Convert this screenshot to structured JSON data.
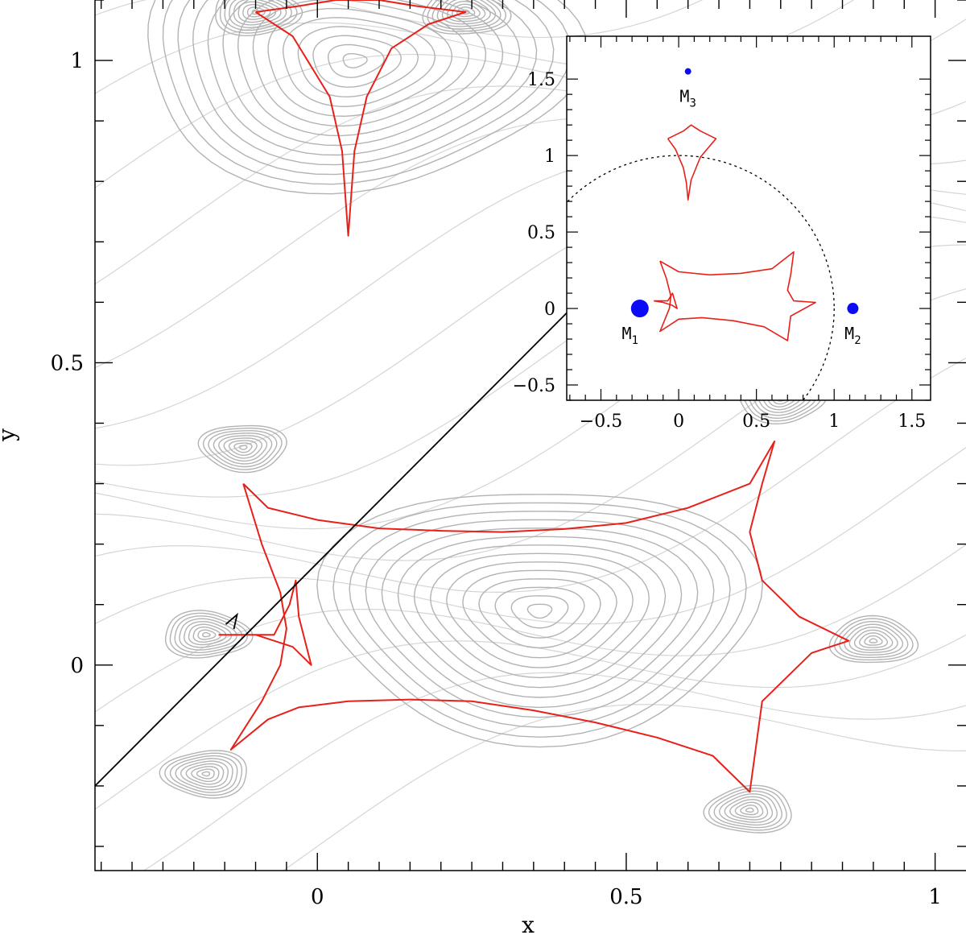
{
  "chart_data": [
    {
      "type": "line",
      "panel": "main",
      "xlabel": "x",
      "ylabel": "y",
      "xlim": [
        -0.36,
        1.05
      ],
      "ylim": [
        -0.34,
        1.1
      ],
      "xticks": [
        0,
        0.5,
        1
      ],
      "xtick_labels": [
        "0",
        "0.5",
        "1"
      ],
      "yticks": [
        0,
        0.5,
        1
      ],
      "ytick_labels": [
        "0",
        "0.5",
        "1"
      ],
      "grid": false,
      "contour_color": "#b3b3b3",
      "caustic_color": "#e8201a",
      "trajectory_color": "#000000",
      "contour_centers": [
        {
          "x": 0.36,
          "y": 0.09,
          "level": "minimum"
        },
        {
          "x": 0.06,
          "y": 1.0,
          "level": "minimum"
        },
        {
          "x": -0.18,
          "y": 0.05,
          "level": "peak"
        },
        {
          "x": 0.9,
          "y": 0.04,
          "level": "peak"
        },
        {
          "x": 0.7,
          "y": -0.24,
          "level": "peak"
        },
        {
          "x": -0.18,
          "y": -0.18,
          "level": "peak"
        },
        {
          "x": -0.12,
          "y": 0.36,
          "level": "peak"
        },
        {
          "x": 0.75,
          "y": 0.44,
          "level": "peak"
        },
        {
          "x": -0.1,
          "y": 1.08,
          "level": "peak"
        },
        {
          "x": 0.24,
          "y": 1.08,
          "level": "peak"
        }
      ],
      "series": [
        {
          "role": "caustic-central",
          "x": [
            -0.12,
            -0.08,
            0.0,
            0.1,
            0.2,
            0.3,
            0.4,
            0.5,
            0.6,
            0.7,
            0.74,
            0.72,
            0.7,
            0.72,
            0.78,
            0.86,
            0.8,
            0.72,
            0.7,
            0.64,
            0.55,
            0.45,
            0.35,
            0.25,
            0.15,
            0.05,
            -0.03,
            -0.08,
            -0.14,
            -0.09,
            -0.06,
            -0.05,
            -0.06,
            -0.09,
            -0.12
          ],
          "y": [
            0.3,
            0.26,
            0.24,
            0.226,
            0.222,
            0.22,
            0.225,
            0.235,
            0.26,
            0.3,
            0.37,
            0.3,
            0.22,
            0.14,
            0.08,
            0.04,
            0.02,
            -0.06,
            -0.21,
            -0.15,
            -0.12,
            -0.095,
            -0.075,
            -0.06,
            -0.057,
            -0.06,
            -0.07,
            -0.09,
            -0.14,
            -0.06,
            0.0,
            0.06,
            0.12,
            0.2,
            0.3
          ]
        },
        {
          "role": "caustic-small",
          "x": [
            -0.16,
            -0.1,
            -0.04,
            -0.01,
            -0.03,
            -0.035,
            -0.045,
            -0.07,
            -0.13,
            -0.16
          ],
          "y": [
            0.05,
            0.05,
            0.03,
            0.0,
            0.08,
            0.14,
            0.1,
            0.05,
            0.05,
            0.05
          ]
        },
        {
          "role": "caustic-top",
          "x": [
            -0.1,
            -0.04,
            0.02,
            0.04,
            0.05,
            0.06,
            0.08,
            0.12,
            0.18,
            0.24,
            0.16,
            0.1,
            0.06,
            0.03,
            -0.03,
            -0.1
          ],
          "y": [
            1.08,
            1.04,
            0.94,
            0.85,
            0.71,
            0.85,
            0.94,
            1.02,
            1.06,
            1.08,
            1.09,
            1.1,
            1.1,
            1.1,
            1.09,
            1.08
          ]
        },
        {
          "role": "trajectory",
          "x": [
            -0.36,
            0.46
          ],
          "y": [
            -0.2,
            0.64
          ]
        }
      ]
    },
    {
      "type": "scatter",
      "panel": "inset",
      "xlim": [
        -0.72,
        1.62
      ],
      "ylim": [
        -0.6,
        1.78
      ],
      "xticks": [
        -0.5,
        0,
        0.5,
        1,
        1.5
      ],
      "xtick_labels": [
        "−0.5",
        "0",
        "0.5",
        "1",
        "1.5"
      ],
      "yticks": [
        -0.5,
        0,
        0.5,
        1,
        1.5
      ],
      "ytick_labels": [
        "−0.5",
        "0",
        "0.5",
        "1",
        "1.5"
      ],
      "grid": false,
      "point_color": "#0b0bf5",
      "points": [
        {
          "name": "M1",
          "label_main": "M",
          "label_sub": "1",
          "x": -0.25,
          "y": 0.0,
          "size": "large"
        },
        {
          "name": "M2",
          "label_main": "M",
          "label_sub": "2",
          "x": 1.12,
          "y": 0.0,
          "size": "medium"
        },
        {
          "name": "M3",
          "label_main": "M",
          "label_sub": "3",
          "x": 0.06,
          "y": 1.55,
          "size": "small"
        }
      ],
      "circle": {
        "center_x": 0.0,
        "center_y": 0.0,
        "radius": 1.0,
        "style": "dotted"
      },
      "caustics": [
        {
          "role": "inset-caustic-central",
          "x": [
            -0.12,
            0.0,
            0.2,
            0.4,
            0.6,
            0.74,
            0.72,
            0.7,
            0.74,
            0.88,
            0.72,
            0.7,
            0.55,
            0.35,
            0.15,
            0.0,
            -0.12,
            -0.06,
            -0.05,
            -0.08,
            -0.12
          ],
          "y": [
            0.31,
            0.24,
            0.22,
            0.23,
            0.26,
            0.37,
            0.22,
            0.12,
            0.05,
            0.04,
            -0.05,
            -0.21,
            -0.12,
            -0.08,
            -0.06,
            -0.07,
            -0.15,
            0.0,
            0.08,
            0.2,
            0.31
          ]
        },
        {
          "role": "inset-caustic-small",
          "x": [
            -0.16,
            -0.1,
            -0.04,
            -0.01,
            -0.04,
            -0.07,
            -0.16
          ],
          "y": [
            0.05,
            0.04,
            0.02,
            0.0,
            0.1,
            0.05,
            0.05
          ]
        },
        {
          "role": "inset-caustic-top",
          "x": [
            -0.07,
            -0.02,
            0.03,
            0.05,
            0.06,
            0.08,
            0.14,
            0.24,
            0.14,
            0.08,
            0.03,
            -0.07
          ],
          "y": [
            1.11,
            1.04,
            0.92,
            0.82,
            0.71,
            0.84,
            0.99,
            1.11,
            1.16,
            1.2,
            1.16,
            1.11
          ]
        }
      ]
    }
  ]
}
